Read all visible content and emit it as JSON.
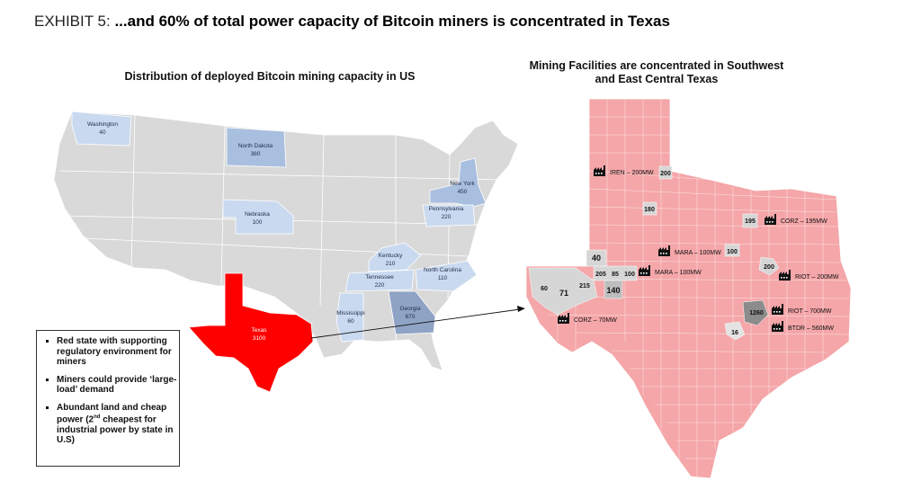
{
  "exhibit": {
    "label": "EXHIBIT 5:",
    "headline": "...and 60% of total power capacity of Bitcoin miners is concentrated in Texas"
  },
  "us_map": {
    "title": "Distribution of deployed Bitcoin mining capacity in US",
    "states": [
      {
        "name": "Washington",
        "value": "40"
      },
      {
        "name": "North Dakota",
        "value": "380"
      },
      {
        "name": "Nebraska",
        "value": "100"
      },
      {
        "name": "New York",
        "value": "450"
      },
      {
        "name": "Pennsylvania",
        "value": "220"
      },
      {
        "name": "Kentucky",
        "value": "210"
      },
      {
        "name": "Tennessee",
        "value": "220"
      },
      {
        "name": "North Carolina",
        "value": "110"
      },
      {
        "name": "Mississippi",
        "value": "60"
      },
      {
        "name": "Georgia",
        "value": "670"
      },
      {
        "name": "Texas",
        "value": "3100"
      }
    ]
  },
  "texas_map": {
    "title_line1": "Mining Facilities are concentrated in Southwest",
    "title_line2": "and East Central Texas",
    "county_values": [
      "200",
      "180",
      "195",
      "40",
      "100",
      "200",
      "205",
      "85",
      "100",
      "60",
      "71",
      "215",
      "140",
      "1260",
      "16"
    ],
    "facilities": [
      {
        "label": "IREN – 200MW"
      },
      {
        "label": "CORZ – 195MW"
      },
      {
        "label": "MARA – 100MW"
      },
      {
        "label": "MARA – 100MW"
      },
      {
        "label": "RIOT – 200MW"
      },
      {
        "label": "RIOT – 700MW"
      },
      {
        "label": "BTDR – 560MW"
      },
      {
        "label": "CORZ – 70MW"
      }
    ]
  },
  "notes": {
    "items": [
      "Red state with supporting regulatory environment for miners",
      "Miners could provide ‘large-load’ demand"
    ],
    "item3_pre": "Abundant land and cheap power (2",
    "item3_sup": "nd",
    "item3_post": " cheapest for industrial power by state in U.S)"
  },
  "colors": {
    "texas_red": "#ff0000",
    "texas_pink": "#f4a6a8",
    "state_gray": "#d9d9d9",
    "capacity_blue_light": "#c9d9ef",
    "capacity_blue_mid": "#a9bfdf",
    "capacity_blue_dark": "#8fa3c4",
    "county_gray": "#d6d6d6"
  },
  "icons": [
    "factory-icon"
  ]
}
